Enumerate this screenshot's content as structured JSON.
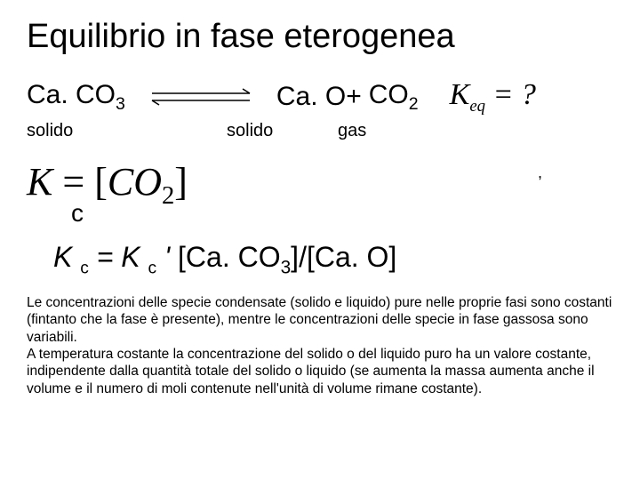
{
  "title": "Equilibrio in fase eterogenea",
  "reaction": {
    "reactant": "Ca. CO",
    "reactant_sub": "3",
    "product1": "Ca. O+",
    "product2_a": "CO",
    "product2_sub": "2",
    "keq_K": "K",
    "keq_sub": "eq",
    "keq_rest": " = ?"
  },
  "phases": {
    "p1": "solido",
    "p2": "solido",
    "p3": "gas"
  },
  "kc": {
    "K": "K",
    "eq": " = ",
    "lb": "[",
    "co2": "CO",
    "co2_sub": "2",
    "rb": "]",
    "c_label": "c",
    "tick": ","
  },
  "kc_expand": {
    "K1": "K ",
    "c1": "c",
    "eq": " = ",
    "K2": "K ",
    "c2": "c",
    "prime": " '",
    "rest_open": " [Ca. CO",
    "rest_sub": "3",
    "rest_mid": "]/[Ca. O]"
  },
  "body": "Le concentrazioni delle specie condensate (solido e liquido) pure nelle proprie fasi sono costanti (fintanto che la fase è presente), mentre le concentrazioni delle specie in fase gassosa sono variabili.\nA temperatura costante la concentrazione del solido o del liquido puro ha un valore costante, indipendente dalla quantità totale del solido o liquido (se aumenta la massa aumenta anche il volume e il numero di moli contenute nell'unità di volume rimane costante).",
  "colors": {
    "text": "#000000",
    "bg": "#ffffff"
  }
}
